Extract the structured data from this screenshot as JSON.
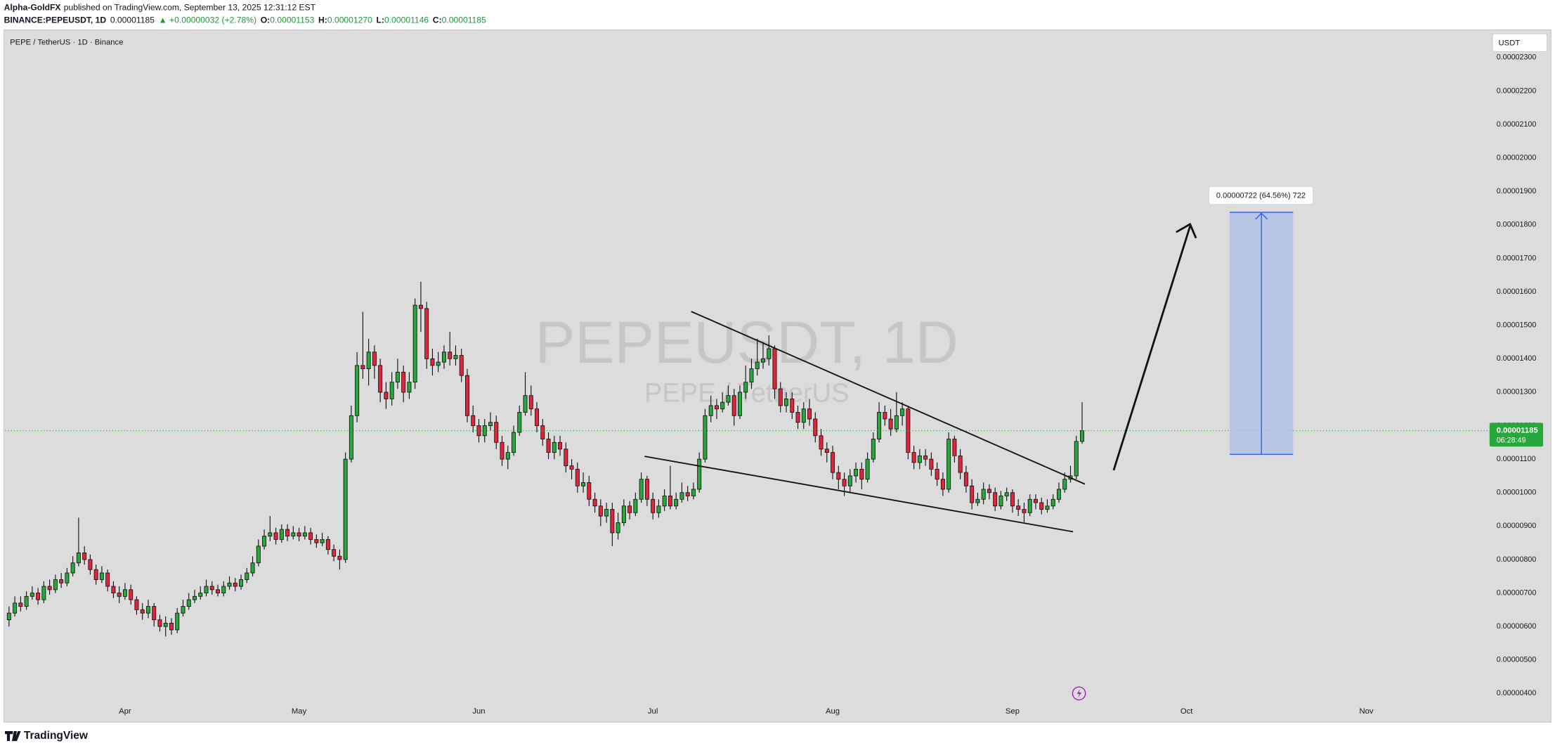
{
  "header": {
    "author": "Alpha-GoldFX",
    "published": "published on TradingView.com, September 13, 2025 12:31:12 EST",
    "symbol": "BINANCE:PEPEUSDT, 1D",
    "price": "0.00001185",
    "change": "▲ +0.00000032 (+2.78%)",
    "ohlc": [
      {
        "label": "O:",
        "value": "0.00001153"
      },
      {
        "label": "H:",
        "value": "0.00001270"
      },
      {
        "label": "L:",
        "value": "0.00001146"
      },
      {
        "label": "C:",
        "value": "0.00001185"
      }
    ]
  },
  "footer": {
    "logo": "TradingView"
  },
  "chart_data": {
    "type": "candlestick",
    "title": "PEPE / TetherUS · 1D · Binance",
    "watermark": "PEPEUSDT, 1D",
    "watermark_sub": "PEPE / TetherUS",
    "currency": "USDT",
    "up_color": "#27a83a",
    "down_color": "#e3243d",
    "last_price_label": "0.00001185",
    "countdown": "06:28:49",
    "annotation": "0.00000722 (64.56%) 722",
    "grid": false,
    "xlim": [
      -0.7,
      254.9
    ],
    "ylim": [
      3.17e-06,
      2.38e-05
    ],
    "xticks": [
      {
        "value": 20,
        "label": "Apr"
      },
      {
        "value": 50,
        "label": "May"
      },
      {
        "value": 81,
        "label": "Jun"
      },
      {
        "value": 111,
        "label": "Jul"
      },
      {
        "value": 142,
        "label": "Aug"
      },
      {
        "value": 173,
        "label": "Sep"
      },
      {
        "value": 203,
        "label": "Oct"
      },
      {
        "value": 234,
        "label": "Nov"
      }
    ],
    "yticks": [
      {
        "value": 4e-06,
        "label": "0.00000400"
      },
      {
        "value": 5e-06,
        "label": "0.00000500"
      },
      {
        "value": 6e-06,
        "label": "0.00000600"
      },
      {
        "value": 7e-06,
        "label": "0.00000700"
      },
      {
        "value": 8e-06,
        "label": "0.00000800"
      },
      {
        "value": 9e-06,
        "label": "0.00000900"
      },
      {
        "value": 1e-05,
        "label": "0.00001000"
      },
      {
        "value": 1.1e-05,
        "label": "0.00001100"
      },
      {
        "value": 1.2e-05,
        "label": "0.00001200"
      },
      {
        "value": 1.3e-05,
        "label": "0.00001300"
      },
      {
        "value": 1.4e-05,
        "label": "0.00001400"
      },
      {
        "value": 1.5e-05,
        "label": "0.00001500"
      },
      {
        "value": 1.6e-05,
        "label": "0.00001600"
      },
      {
        "value": 1.7e-05,
        "label": "0.00001700"
      },
      {
        "value": 1.8e-05,
        "label": "0.00001800"
      },
      {
        "value": 1.9e-05,
        "label": "0.00001900"
      },
      {
        "value": 2e-05,
        "label": "0.00002000"
      },
      {
        "value": 2.1e-05,
        "label": "0.00002100"
      },
      {
        "value": 2.2e-05,
        "label": "0.00002200"
      },
      {
        "value": 2.3e-05,
        "label": "0.00002300"
      }
    ],
    "candles": [
      [
        6.2e-06,
        6.6e-06,
        6e-06,
        6.4e-06
      ],
      [
        6.4e-06,
        6.9e-06,
        6.3e-06,
        6.7e-06
      ],
      [
        6.7e-06,
        6.9e-06,
        6.45e-06,
        6.6e-06
      ],
      [
        6.6e-06,
        7.05e-06,
        6.5e-06,
        6.9e-06
      ],
      [
        6.9e-06,
        7.2e-06,
        6.8e-06,
        7e-06
      ],
      [
        7e-06,
        7.15e-06,
        6.65e-06,
        6.8e-06
      ],
      [
        6.8e-06,
        7.35e-06,
        6.7e-06,
        7.2e-06
      ],
      [
        7.2e-06,
        7.4e-06,
        6.95e-06,
        7.1e-06
      ],
      [
        7.1e-06,
        7.55e-06,
        7e-06,
        7.4e-06
      ],
      [
        7.4e-06,
        7.6e-06,
        7.15e-06,
        7.3e-06
      ],
      [
        7.3e-06,
        7.75e-06,
        7.2e-06,
        7.6e-06
      ],
      [
        7.6e-06,
        8.1e-06,
        7.5e-06,
        7.9e-06
      ],
      [
        7.9e-06,
        9.25e-06,
        7.8e-06,
        8.2e-06
      ],
      [
        8.2e-06,
        8.4e-06,
        7.85e-06,
        8e-06
      ],
      [
        8e-06,
        8.15e-06,
        7.55e-06,
        7.7e-06
      ],
      [
        7.7e-06,
        7.85e-06,
        7.25e-06,
        7.4e-06
      ],
      [
        7.4e-06,
        7.8e-06,
        7.3e-06,
        7.6e-06
      ],
      [
        7.6e-06,
        7.7e-06,
        7.05e-06,
        7.2e-06
      ],
      [
        7.2e-06,
        7.35e-06,
        6.85e-06,
        7e-06
      ],
      [
        7e-06,
        7.2e-06,
        6.7e-06,
        6.9e-06
      ],
      [
        6.9e-06,
        7.3e-06,
        6.8e-06,
        7.1e-06
      ],
      [
        7.1e-06,
        7.25e-06,
        6.65e-06,
        6.8e-06
      ],
      [
        6.8e-06,
        6.9e-06,
        6.35e-06,
        6.5e-06
      ],
      [
        6.5e-06,
        6.7e-06,
        6.2e-06,
        6.4e-06
      ],
      [
        6.4e-06,
        6.8e-06,
        6.25e-06,
        6.6e-06
      ],
      [
        6.6e-06,
        6.7e-06,
        6e-06,
        6.2e-06
      ],
      [
        6.2e-06,
        6.35e-06,
        5.85e-06,
        6e-06
      ],
      [
        6e-06,
        6.3e-06,
        5.7e-06,
        6.1e-06
      ],
      [
        6.1e-06,
        6.25e-06,
        5.75e-06,
        5.9e-06
      ],
      [
        5.9e-06,
        6.55e-06,
        5.8e-06,
        6.4e-06
      ],
      [
        6.4e-06,
        6.8e-06,
        6.3e-06,
        6.6e-06
      ],
      [
        6.6e-06,
        7e-06,
        6.5e-06,
        6.8e-06
      ],
      [
        6.8e-06,
        7.1e-06,
        6.7e-06,
        6.9e-06
      ],
      [
        6.9e-06,
        7.2e-06,
        6.8e-06,
        7e-06
      ],
      [
        7e-06,
        7.4e-06,
        6.9e-06,
        7.2e-06
      ],
      [
        7.2e-06,
        7.35e-06,
        6.95e-06,
        7.1e-06
      ],
      [
        7.1e-06,
        7.25e-06,
        6.9e-06,
        7e-06
      ],
      [
        7e-06,
        7.35e-06,
        6.9e-06,
        7.2e-06
      ],
      [
        7.2e-06,
        7.5e-06,
        7.1e-06,
        7.3e-06
      ],
      [
        7.3e-06,
        7.45e-06,
        7.05e-06,
        7.2e-06
      ],
      [
        7.2e-06,
        7.55e-06,
        7.1e-06,
        7.4e-06
      ],
      [
        7.4e-06,
        7.75e-06,
        7.3e-06,
        7.6e-06
      ],
      [
        7.6e-06,
        8.1e-06,
        7.5e-06,
        7.9e-06
      ],
      [
        7.9e-06,
        8.6e-06,
        7.8e-06,
        8.4e-06
      ],
      [
        8.4e-06,
        8.9e-06,
        8.3e-06,
        8.7e-06
      ],
      [
        8.7e-06,
        9.3e-06,
        8.55e-06,
        8.8e-06
      ],
      [
        8.8e-06,
        8.95e-06,
        8.45e-06,
        8.6e-06
      ],
      [
        8.6e-06,
        9.05e-06,
        8.5e-06,
        8.9e-06
      ],
      [
        8.9e-06,
        9.05e-06,
        8.55e-06,
        8.7e-06
      ],
      [
        8.7e-06,
        9e-06,
        8.6e-06,
        8.8e-06
      ],
      [
        8.8e-06,
        8.95e-06,
        8.55e-06,
        8.7e-06
      ],
      [
        8.7e-06,
        9e-06,
        8.6e-06,
        8.8e-06
      ],
      [
        8.8e-06,
        8.95e-06,
        8.45e-06,
        8.6e-06
      ],
      [
        8.6e-06,
        8.75e-06,
        8.35e-06,
        8.5e-06
      ],
      [
        8.5e-06,
        8.8e-06,
        8.4e-06,
        8.6e-06
      ],
      [
        8.6e-06,
        8.7e-06,
        8.15e-06,
        8.3e-06
      ],
      [
        8.3e-06,
        8.45e-06,
        7.95e-06,
        8.1e-06
      ],
      [
        8.1e-06,
        8.3e-06,
        7.7e-06,
        8e-06
      ],
      [
        8e-06,
        1.12e-05,
        7.9e-06,
        1.1e-05
      ],
      [
        1.1e-05,
        1.26e-05,
        1.09e-05,
        1.23e-05
      ],
      [
        1.23e-05,
        1.42e-05,
        1.21e-05,
        1.38e-05
      ],
      [
        1.38e-05,
        1.54e-05,
        1.34e-05,
        1.37e-05
      ],
      [
        1.37e-05,
        1.46e-05,
        1.32e-05,
        1.42e-05
      ],
      [
        1.42e-05,
        1.44e-05,
        1.34e-05,
        1.38e-05
      ],
      [
        1.38e-05,
        1.4e-05,
        1.27e-05,
        1.3e-05
      ],
      [
        1.3e-05,
        1.33e-05,
        1.25e-05,
        1.28e-05
      ],
      [
        1.28e-05,
        1.36e-05,
        1.26e-05,
        1.33e-05
      ],
      [
        1.33e-05,
        1.4e-05,
        1.31e-05,
        1.36e-05
      ],
      [
        1.36e-05,
        1.38e-05,
        1.27e-05,
        1.3e-05
      ],
      [
        1.3e-05,
        1.36e-05,
        1.28e-05,
        1.33e-05
      ],
      [
        1.33e-05,
        1.58e-05,
        1.31e-05,
        1.56e-05
      ],
      [
        1.56e-05,
        1.63e-05,
        1.48e-05,
        1.55e-05
      ],
      [
        1.55e-05,
        1.57e-05,
        1.37e-05,
        1.4e-05
      ],
      [
        1.4e-05,
        1.43e-05,
        1.35e-05,
        1.38e-05
      ],
      [
        1.38e-05,
        1.42e-05,
        1.36e-05,
        1.39e-05
      ],
      [
        1.39e-05,
        1.44e-05,
        1.37e-05,
        1.42e-05
      ],
      [
        1.42e-05,
        1.48e-05,
        1.38e-05,
        1.4e-05
      ],
      [
        1.4e-05,
        1.44e-05,
        1.38e-05,
        1.41e-05
      ],
      [
        1.41e-05,
        1.43e-05,
        1.33e-05,
        1.35e-05
      ],
      [
        1.35e-05,
        1.37e-05,
        1.21e-05,
        1.23e-05
      ],
      [
        1.23e-05,
        1.26e-05,
        1.18e-05,
        1.2e-05
      ],
      [
        1.2e-05,
        1.22e-05,
        1.15e-05,
        1.17e-05
      ],
      [
        1.17e-05,
        1.22e-05,
        1.15e-05,
        1.2e-05
      ],
      [
        1.2e-05,
        1.24e-05,
        1.185e-05,
        1.21e-05
      ],
      [
        1.21e-05,
        1.23e-05,
        1.13e-05,
        1.15e-05
      ],
      [
        1.15e-05,
        1.17e-05,
        1.08e-05,
        1.1e-05
      ],
      [
        1.1e-05,
        1.14e-05,
        1.07e-05,
        1.12e-05
      ],
      [
        1.12e-05,
        1.2e-05,
        1.11e-05,
        1.18e-05
      ],
      [
        1.18e-05,
        1.26e-05,
        1.17e-05,
        1.24e-05
      ],
      [
        1.24e-05,
        1.36e-05,
        1.23e-05,
        1.29e-05
      ],
      [
        1.29e-05,
        1.32e-05,
        1.23e-05,
        1.25e-05
      ],
      [
        1.25e-05,
        1.27e-05,
        1.18e-05,
        1.2e-05
      ],
      [
        1.2e-05,
        1.22e-05,
        1.14e-05,
        1.16e-05
      ],
      [
        1.16e-05,
        1.18e-05,
        1.1e-05,
        1.12e-05
      ],
      [
        1.12e-05,
        1.17e-05,
        1.1e-05,
        1.15e-05
      ],
      [
        1.15e-05,
        1.17e-05,
        1.11e-05,
        1.13e-05
      ],
      [
        1.13e-05,
        1.15e-05,
        1.06e-05,
        1.08e-05
      ],
      [
        1.08e-05,
        1.1e-05,
        1.04e-05,
        1.07e-05
      ],
      [
        1.07e-05,
        1.09e-05,
        1e-05,
        1.02e-05
      ],
      [
        1.02e-05,
        1.06e-05,
        1e-05,
        1.03e-05
      ],
      [
        1.03e-05,
        1.05e-05,
        9.6e-06,
        9.8e-06
      ],
      [
        9.8e-06,
        1e-05,
        9.4e-06,
        9.6e-06
      ],
      [
        9.6e-06,
        9.8e-06,
        9e-06,
        9.3e-06
      ],
      [
        9.3e-06,
        9.7e-06,
        9.1e-06,
        9.5e-06
      ],
      [
        9.5e-06,
        9.7e-06,
        8.4e-06,
        8.8e-06
      ],
      [
        8.8e-06,
        9.4e-06,
        8.6e-06,
        9.1e-06
      ],
      [
        9.1e-06,
        9.8e-06,
        9e-06,
        9.6e-06
      ],
      [
        9.6e-06,
        9.75e-06,
        9.2e-06,
        9.4e-06
      ],
      [
        9.4e-06,
        1e-05,
        9.3e-06,
        9.8e-06
      ],
      [
        9.8e-06,
        1.06e-05,
        9.7e-06,
        1.04e-05
      ],
      [
        1.04e-05,
        1.05e-05,
        9.6e-06,
        9.8e-06
      ],
      [
        9.8e-06,
        1e-05,
        9.2e-06,
        9.4e-06
      ],
      [
        9.4e-06,
        9.8e-06,
        9.25e-06,
        9.6e-06
      ],
      [
        9.6e-06,
        1.01e-05,
        9.45e-06,
        9.9e-06
      ],
      [
        9.9e-06,
        1.08e-05,
        9.5e-06,
        9.6e-06
      ],
      [
        9.6e-06,
        1e-05,
        9.5e-06,
        9.8e-06
      ],
      [
        9.8e-06,
        1.03e-05,
        9.7e-06,
        1e-05
      ],
      [
        1e-05,
        1.02e-05,
        9.75e-06,
        9.9e-06
      ],
      [
        9.9e-06,
        1.03e-05,
        9.8e-06,
        1.01e-05
      ],
      [
        1.01e-05,
        1.12e-05,
        1e-05,
        1.1e-05
      ],
      [
        1.1e-05,
        1.25e-05,
        1.09e-05,
        1.23e-05
      ],
      [
        1.23e-05,
        1.29e-05,
        1.21e-05,
        1.26e-05
      ],
      [
        1.26e-05,
        1.28e-05,
        1.22e-05,
        1.25e-05
      ],
      [
        1.25e-05,
        1.3e-05,
        1.24e-05,
        1.27e-05
      ],
      [
        1.27e-05,
        1.32e-05,
        1.26e-05,
        1.29e-05
      ],
      [
        1.29e-05,
        1.31e-05,
        1.2e-05,
        1.23e-05
      ],
      [
        1.23e-05,
        1.32e-05,
        1.22e-05,
        1.3e-05
      ],
      [
        1.3e-05,
        1.38e-05,
        1.28e-05,
        1.33e-05
      ],
      [
        1.33e-05,
        1.4e-05,
        1.31e-05,
        1.37e-05
      ],
      [
        1.37e-05,
        1.46e-05,
        1.35e-05,
        1.39e-05
      ],
      [
        1.39e-05,
        1.45e-05,
        1.37e-05,
        1.4e-05
      ],
      [
        1.4e-05,
        1.47e-05,
        1.38e-05,
        1.43e-05
      ],
      [
        1.43e-05,
        1.44e-05,
        1.28e-05,
        1.31e-05
      ],
      [
        1.31e-05,
        1.33e-05,
        1.24e-05,
        1.26e-05
      ],
      [
        1.26e-05,
        1.3e-05,
        1.24e-05,
        1.28e-05
      ],
      [
        1.28e-05,
        1.3e-05,
        1.22e-05,
        1.24e-05
      ],
      [
        1.24e-05,
        1.26e-05,
        1.19e-05,
        1.21e-05
      ],
      [
        1.21e-05,
        1.27e-05,
        1.19e-05,
        1.25e-05
      ],
      [
        1.25e-05,
        1.28e-05,
        1.2e-05,
        1.22e-05
      ],
      [
        1.22e-05,
        1.24e-05,
        1.15e-05,
        1.17e-05
      ],
      [
        1.17e-05,
        1.19e-05,
        1.11e-05,
        1.13e-05
      ],
      [
        1.13e-05,
        1.15e-05,
        1.09e-05,
        1.12e-05
      ],
      [
        1.12e-05,
        1.14e-05,
        1.04e-05,
        1.06e-05
      ],
      [
        1.06e-05,
        1.08e-05,
        1.01e-05,
        1.04e-05
      ],
      [
        1.04e-05,
        1.06e-05,
        9.9e-06,
        1.02e-05
      ],
      [
        1.02e-05,
        1.07e-05,
        1e-05,
        1.05e-05
      ],
      [
        1.05e-05,
        1.09e-05,
        1.03e-05,
        1.07e-05
      ],
      [
        1.07e-05,
        1.09e-05,
        1.01e-05,
        1.04e-05
      ],
      [
        1.04e-05,
        1.12e-05,
        1.03e-05,
        1.1e-05
      ],
      [
        1.1e-05,
        1.18e-05,
        1.09e-05,
        1.16e-05
      ],
      [
        1.16e-05,
        1.27e-05,
        1.15e-05,
        1.24e-05
      ],
      [
        1.24e-05,
        1.26e-05,
        1.2e-05,
        1.22e-05
      ],
      [
        1.22e-05,
        1.25e-05,
        1.17e-05,
        1.19e-05
      ],
      [
        1.19e-05,
        1.3e-05,
        1.18e-05,
        1.23e-05
      ],
      [
        1.23e-05,
        1.27e-05,
        1.2e-05,
        1.25e-05
      ],
      [
        1.25e-05,
        1.26e-05,
        1.1e-05,
        1.12e-05
      ],
      [
        1.12e-05,
        1.14e-05,
        1.07e-05,
        1.09e-05
      ],
      [
        1.09e-05,
        1.13e-05,
        1.07e-05,
        1.11e-05
      ],
      [
        1.11e-05,
        1.13e-05,
        1.08e-05,
        1.1e-05
      ],
      [
        1.1e-05,
        1.12e-05,
        1.05e-05,
        1.07e-05
      ],
      [
        1.07e-05,
        1.09e-05,
        1.02e-05,
        1.04e-05
      ],
      [
        1.04e-05,
        1.06e-05,
        9.9e-06,
        1.01e-05
      ],
      [
        1.01e-05,
        1.18e-05,
        1e-05,
        1.16e-05
      ],
      [
        1.16e-05,
        1.17e-05,
        1.09e-05,
        1.11e-05
      ],
      [
        1.11e-05,
        1.13e-05,
        1.04e-05,
        1.06e-05
      ],
      [
        1.06e-05,
        1.08e-05,
        1e-05,
        1.02e-05
      ],
      [
        1.02e-05,
        1.04e-05,
        9.5e-06,
        9.7e-06
      ],
      [
        9.7e-06,
        1e-05,
        9.6e-06,
        9.8e-06
      ],
      [
        9.8e-06,
        1.03e-05,
        9.65e-06,
        1.01e-05
      ],
      [
        1.01e-05,
        1.025e-05,
        9.8e-06,
        1e-05
      ],
      [
        1e-05,
        1.015e-05,
        9.45e-06,
        9.6e-06
      ],
      [
        9.6e-06,
        1.005e-05,
        9.5e-06,
        9.9e-06
      ],
      [
        9.9e-06,
        1.015e-05,
        9.75e-06,
        1e-05
      ],
      [
        1e-05,
        1.01e-05,
        9.4e-06,
        9.6e-06
      ],
      [
        9.6e-06,
        9.8e-06,
        9.3e-06,
        9.5e-06
      ],
      [
        9.5e-06,
        9.7e-06,
        9.1e-06,
        9.4e-06
      ],
      [
        9.4e-06,
        9.95e-06,
        9.3e-06,
        9.8e-06
      ],
      [
        9.8e-06,
        9.95e-06,
        9.5e-06,
        9.7e-06
      ],
      [
        9.7e-06,
        9.85e-06,
        9.35e-06,
        9.5e-06
      ],
      [
        9.5e-06,
        9.8e-06,
        9.4e-06,
        9.6e-06
      ],
      [
        9.6e-06,
        9.95e-06,
        9.5e-06,
        9.8e-06
      ],
      [
        9.8e-06,
        1.03e-05,
        9.7e-06,
        1.01e-05
      ],
      [
        1.01e-05,
        1.06e-05,
        1e-05,
        1.04e-05
      ],
      [
        1.04e-05,
        1.08e-05,
        1.03e-05,
        1.05e-05
      ],
      [
        1.05e-05,
        1.17e-05,
        1.04e-05,
        1.153e-05
      ],
      [
        1.153e-05,
        1.27e-05,
        1.146e-05,
        1.185e-05
      ]
    ]
  }
}
